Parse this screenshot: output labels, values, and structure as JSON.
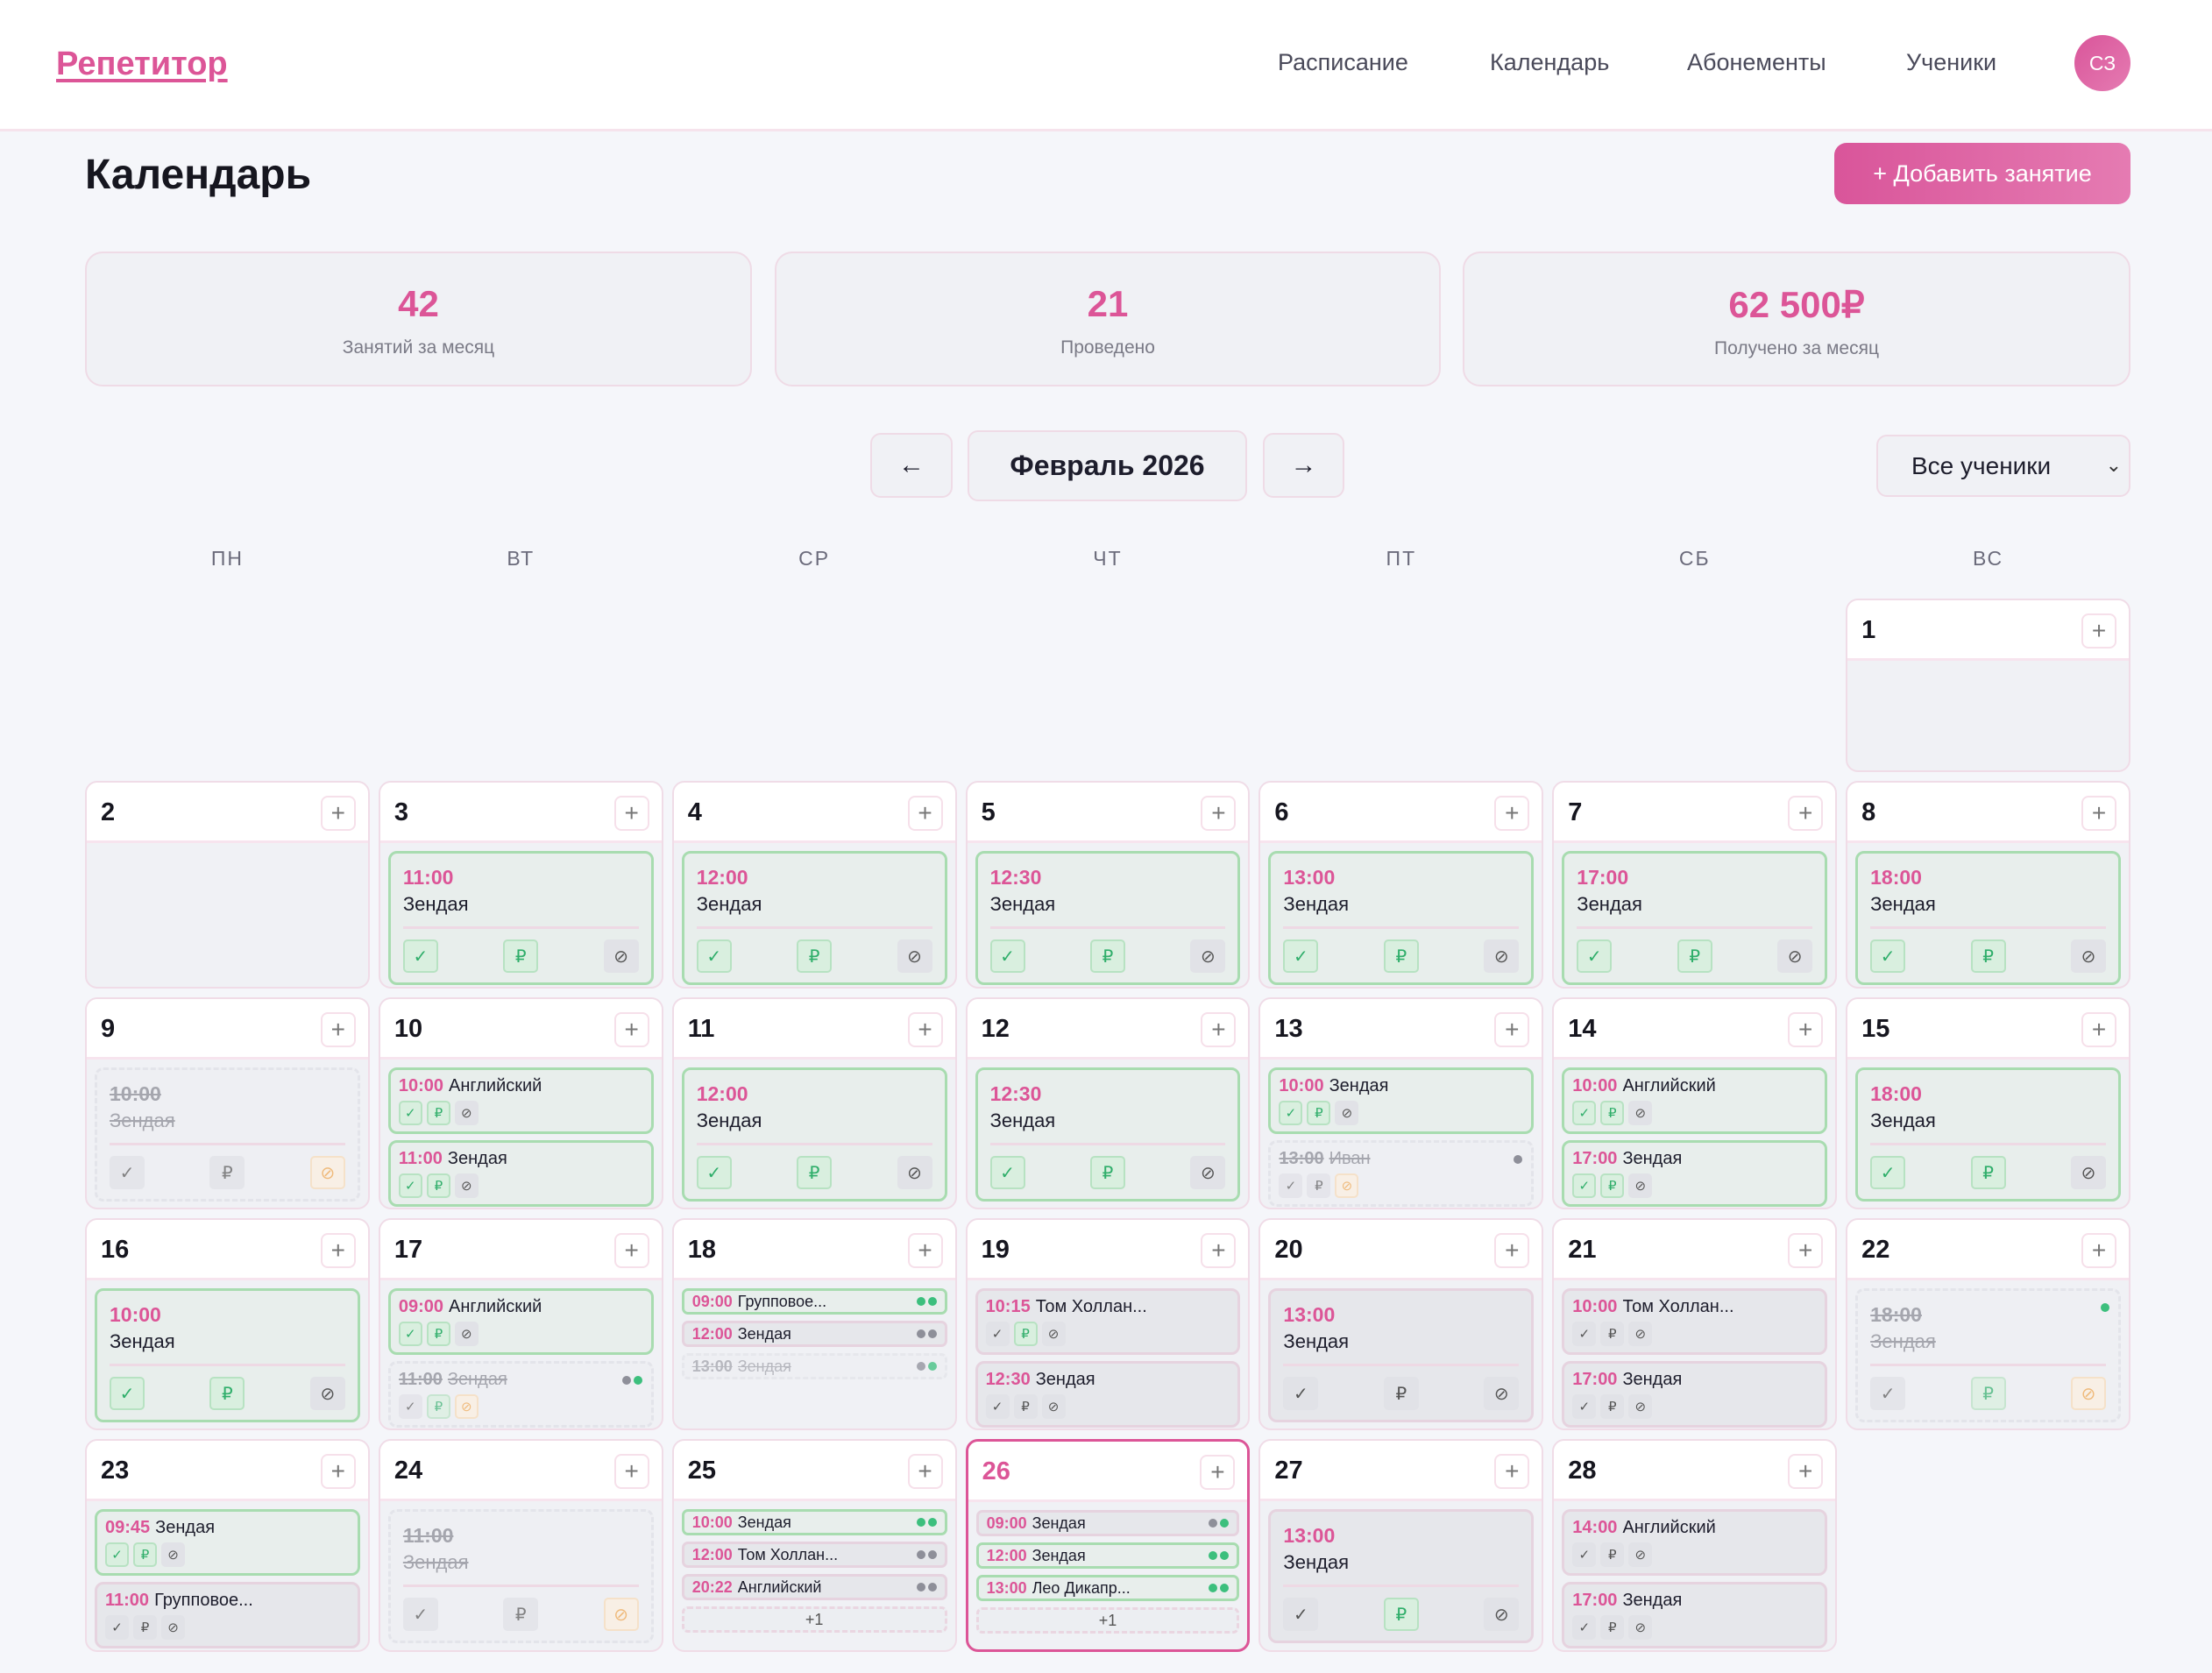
{
  "header": {
    "logo": "Репетитор",
    "nav": [
      "Расписание",
      "Календарь",
      "Абонементы",
      "Ученики"
    ],
    "avatar": "СЗ"
  },
  "page": {
    "title": "Календарь",
    "add_button": "+ Добавить занятие"
  },
  "stats": [
    {
      "value": "42",
      "label": "Занятий за месяц"
    },
    {
      "value": "21",
      "label": "Проведено"
    },
    {
      "value": "62 500₽",
      "label": "Получено за месяц"
    }
  ],
  "month_nav": {
    "prev": "←",
    "month": "Февраль 2026",
    "next": "→"
  },
  "filter": {
    "selected": "Все ученики"
  },
  "weekdays": [
    "ПН",
    "ВТ",
    "СР",
    "ЧТ",
    "ПТ",
    "СБ",
    "ВС"
  ],
  "colors": {
    "accent": "#dc5597",
    "green": "#2fae6a",
    "dot_green": "#3cbf7d",
    "dot_gray": "#8e8f99",
    "warn": "#f0a54a"
  },
  "icons": {
    "check": "✓",
    "pay": "₽",
    "cancel": "⊘",
    "plus": "+"
  },
  "calendar": {
    "leading_blank_days": 6,
    "today": 26,
    "days": [
      {
        "day": "1",
        "lessons": []
      },
      {
        "day": "2",
        "lessons": []
      },
      {
        "day": "3",
        "lessons": [
          {
            "view": "big",
            "status": "green",
            "time": "11:00",
            "name": "Зендая",
            "check": "on",
            "pay": "on",
            "cancel": "off"
          }
        ]
      },
      {
        "day": "4",
        "lessons": [
          {
            "view": "big",
            "status": "green",
            "time": "12:00",
            "name": "Зендая",
            "check": "on",
            "pay": "on",
            "cancel": "off"
          }
        ]
      },
      {
        "day": "5",
        "lessons": [
          {
            "view": "big",
            "status": "green",
            "time": "12:30",
            "name": "Зендая",
            "check": "on",
            "pay": "on",
            "cancel": "off"
          }
        ]
      },
      {
        "day": "6",
        "lessons": [
          {
            "view": "big",
            "status": "green",
            "time": "13:00",
            "name": "Зендая",
            "check": "on",
            "pay": "on",
            "cancel": "off"
          }
        ]
      },
      {
        "day": "7",
        "lessons": [
          {
            "view": "big",
            "status": "green",
            "time": "17:00",
            "name": "Зендая",
            "check": "on",
            "pay": "on",
            "cancel": "off"
          }
        ]
      },
      {
        "day": "8",
        "lessons": [
          {
            "view": "big",
            "status": "green",
            "time": "18:00",
            "name": "Зендая",
            "check": "on",
            "pay": "on",
            "cancel": "off"
          }
        ]
      },
      {
        "day": "9",
        "lessons": [
          {
            "view": "big",
            "status": "cancel",
            "time": "10:00",
            "name": "Зендая",
            "check": "off",
            "pay": "off",
            "cancel": "warn"
          }
        ]
      },
      {
        "day": "10",
        "lessons": [
          {
            "view": "cmp",
            "status": "green",
            "time": "10:00",
            "name": "Английский",
            "check": "on",
            "pay": "on",
            "cancel": "off"
          },
          {
            "view": "cmp",
            "status": "green",
            "time": "11:00",
            "name": "Зендая",
            "check": "on",
            "pay": "on",
            "cancel": "off"
          }
        ]
      },
      {
        "day": "11",
        "lessons": [
          {
            "view": "big",
            "status": "green",
            "time": "12:00",
            "name": "Зендая",
            "check": "on",
            "pay": "on",
            "cancel": "off"
          }
        ]
      },
      {
        "day": "12",
        "lessons": [
          {
            "view": "big",
            "status": "green",
            "time": "12:30",
            "name": "Зендая",
            "check": "on",
            "pay": "on",
            "cancel": "off"
          }
        ]
      },
      {
        "day": "13",
        "lessons": [
          {
            "view": "cmp",
            "status": "green",
            "time": "10:00",
            "name": "Зендая",
            "check": "on",
            "pay": "on",
            "cancel": "off"
          },
          {
            "view": "cmp",
            "status": "cancel",
            "time": "13:00",
            "name": "Иван",
            "check": "off",
            "pay": "off",
            "cancel": "warn",
            "dots": [
              "gray"
            ]
          }
        ]
      },
      {
        "day": "14",
        "lessons": [
          {
            "view": "cmp",
            "status": "green",
            "time": "10:00",
            "name": "Английский",
            "check": "on",
            "pay": "on",
            "cancel": "off"
          },
          {
            "view": "cmp",
            "status": "green",
            "time": "17:00",
            "name": "Зендая",
            "check": "on",
            "pay": "on",
            "cancel": "off"
          }
        ]
      },
      {
        "day": "15",
        "lessons": [
          {
            "view": "big",
            "status": "green",
            "time": "18:00",
            "name": "Зендая",
            "check": "on",
            "pay": "on",
            "cancel": "off"
          }
        ]
      },
      {
        "day": "16",
        "lessons": [
          {
            "view": "big",
            "status": "green",
            "time": "10:00",
            "name": "Зендая",
            "check": "on",
            "pay": "on",
            "cancel": "off"
          }
        ]
      },
      {
        "day": "17",
        "lessons": [
          {
            "view": "cmp",
            "status": "green",
            "time": "09:00",
            "name": "Английский",
            "check": "on",
            "pay": "on",
            "cancel": "off"
          },
          {
            "view": "cmp",
            "status": "cancel",
            "time": "11:00",
            "name": "Зендая",
            "check": "off",
            "pay": "on",
            "cancel": "warn",
            "dots": [
              "gray",
              "green"
            ]
          }
        ]
      },
      {
        "day": "18",
        "lessons": [
          {
            "view": "mini",
            "status": "green",
            "time": "09:00",
            "name": "Групповое...",
            "dots": [
              "green",
              "green"
            ]
          },
          {
            "view": "mini",
            "status": "plain",
            "time": "12:00",
            "name": "Зендая",
            "dots": [
              "gray",
              "gray"
            ]
          },
          {
            "view": "mini",
            "status": "cancel",
            "time": "13:00",
            "name": "Зендая",
            "dots": [
              "gray",
              "green"
            ]
          }
        ]
      },
      {
        "day": "19",
        "lessons": [
          {
            "view": "cmp",
            "status": "plain",
            "time": "10:15",
            "name": "Том Холлан...",
            "check": "off",
            "pay": "on",
            "cancel": "off"
          },
          {
            "view": "cmp",
            "status": "plain",
            "time": "12:30",
            "name": "Зендая",
            "check": "off",
            "pay": "off",
            "cancel": "off"
          }
        ]
      },
      {
        "day": "20",
        "lessons": [
          {
            "view": "big",
            "status": "plain",
            "time": "13:00",
            "name": "Зендая",
            "check": "off",
            "pay": "off",
            "cancel": "off"
          }
        ]
      },
      {
        "day": "21",
        "lessons": [
          {
            "view": "cmp",
            "status": "plain",
            "time": "10:00",
            "name": "Том Холлан...",
            "check": "off",
            "pay": "off",
            "cancel": "off"
          },
          {
            "view": "cmp",
            "status": "plain",
            "time": "17:00",
            "name": "Зендая",
            "check": "off",
            "pay": "off",
            "cancel": "off"
          }
        ]
      },
      {
        "day": "22",
        "lessons": [
          {
            "view": "big",
            "status": "cancel",
            "time": "18:00",
            "name": "Зендая",
            "check": "off",
            "pay": "on",
            "cancel": "warn",
            "dots": [
              "green"
            ]
          }
        ]
      },
      {
        "day": "23",
        "lessons": [
          {
            "view": "cmp",
            "status": "green",
            "time": "09:45",
            "name": "Зендая",
            "check": "on",
            "pay": "on",
            "cancel": "off"
          },
          {
            "view": "cmp",
            "status": "plain",
            "time": "11:00",
            "name": "Групповое...",
            "check": "off",
            "pay": "off",
            "cancel": "off"
          }
        ]
      },
      {
        "day": "24",
        "lessons": [
          {
            "view": "big",
            "status": "cancel",
            "time": "11:00",
            "name": "Зендая",
            "check": "off",
            "pay": "off",
            "cancel": "warn"
          }
        ]
      },
      {
        "day": "25",
        "lessons": [
          {
            "view": "mini",
            "status": "green",
            "time": "10:00",
            "name": "Зендая",
            "dots": [
              "green",
              "green"
            ]
          },
          {
            "view": "mini",
            "status": "plain",
            "time": "12:00",
            "name": "Том Холлан...",
            "dots": [
              "gray",
              "gray"
            ]
          },
          {
            "view": "mini",
            "status": "plain",
            "time": "20:22",
            "name": "Английский",
            "dots": [
              "gray",
              "gray"
            ]
          }
        ],
        "more": "+1"
      },
      {
        "day": "26",
        "lessons": [
          {
            "view": "mini",
            "status": "plain",
            "time": "09:00",
            "name": "Зендая",
            "dots": [
              "gray",
              "green"
            ]
          },
          {
            "view": "mini",
            "status": "green",
            "time": "12:00",
            "name": "Зендая",
            "dots": [
              "green",
              "green"
            ]
          },
          {
            "view": "mini",
            "status": "green",
            "time": "13:00",
            "name": "Лео Дикапр...",
            "dots": [
              "green",
              "green"
            ]
          }
        ],
        "more": "+1"
      },
      {
        "day": "27",
        "lessons": [
          {
            "view": "big",
            "status": "plain",
            "time": "13:00",
            "name": "Зендая",
            "check": "off",
            "pay": "on",
            "cancel": "off"
          }
        ]
      },
      {
        "day": "28",
        "lessons": [
          {
            "view": "cmp",
            "status": "plain",
            "time": "14:00",
            "name": "Английский",
            "check": "off",
            "pay": "off",
            "cancel": "off"
          },
          {
            "view": "cmp",
            "status": "plain",
            "time": "17:00",
            "name": "Зендая",
            "check": "off",
            "pay": "off",
            "cancel": "off"
          }
        ]
      }
    ]
  }
}
